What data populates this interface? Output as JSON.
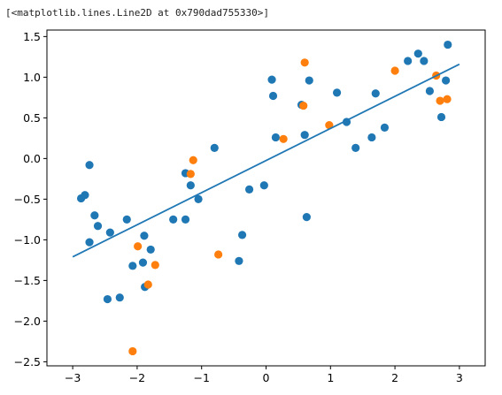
{
  "cell_output": "[<matplotlib.lines.Line2D at 0x790dad755330>]",
  "chart_data": {
    "type": "scatter",
    "title": "",
    "xlabel": "",
    "ylabel": "",
    "xlim": [
      -3.4,
      3.4
    ],
    "ylim": [
      -2.55,
      1.58
    ],
    "xticks": [
      -3,
      -2,
      -1,
      0,
      1,
      2,
      3
    ],
    "xtick_labels": [
      "−3",
      "−2",
      "−1",
      "0",
      "1",
      "2",
      "3"
    ],
    "yticks": [
      -2.5,
      -2.0,
      -1.5,
      -1.0,
      -0.5,
      0.0,
      0.5,
      1.0,
      1.5
    ],
    "ytick_labels": [
      "−2.5",
      "−2.0",
      "−1.5",
      "−1.0",
      "−0.5",
      "0.0",
      "0.5",
      "1.0",
      "1.5"
    ],
    "grid": false,
    "legend": "none",
    "series": [
      {
        "kind": "scatter",
        "color": "#1f77b4",
        "points": [
          [
            -2.87,
            -0.49
          ],
          [
            -2.81,
            -0.45
          ],
          [
            -2.74,
            -0.08
          ],
          [
            -2.74,
            -1.03
          ],
          [
            -2.66,
            -0.7
          ],
          [
            -2.61,
            -0.83
          ],
          [
            -2.46,
            -1.73
          ],
          [
            -2.42,
            -0.91
          ],
          [
            -2.27,
            -1.71
          ],
          [
            -2.16,
            -0.75
          ],
          [
            -2.07,
            -1.32
          ],
          [
            -1.91,
            -1.28
          ],
          [
            -1.89,
            -0.95
          ],
          [
            -1.88,
            -1.58
          ],
          [
            -1.79,
            -1.12
          ],
          [
            -1.44,
            -0.75
          ],
          [
            -1.25,
            -0.75
          ],
          [
            -1.25,
            -0.18
          ],
          [
            -1.17,
            -0.33
          ],
          [
            -1.05,
            -0.5
          ],
          [
            -0.8,
            0.13
          ],
          [
            -0.42,
            -1.26
          ],
          [
            -0.37,
            -0.94
          ],
          [
            -0.26,
            -0.38
          ],
          [
            -0.03,
            -0.33
          ],
          [
            0.09,
            0.97
          ],
          [
            0.11,
            0.77
          ],
          [
            0.15,
            0.26
          ],
          [
            0.55,
            0.66
          ],
          [
            0.6,
            0.29
          ],
          [
            0.63,
            -0.72
          ],
          [
            0.67,
            0.96
          ],
          [
            1.1,
            0.81
          ],
          [
            1.25,
            0.45
          ],
          [
            1.39,
            0.13
          ],
          [
            1.64,
            0.26
          ],
          [
            1.7,
            0.8
          ],
          [
            1.84,
            0.38
          ],
          [
            2.2,
            1.2
          ],
          [
            2.36,
            1.29
          ],
          [
            2.45,
            1.2
          ],
          [
            2.54,
            0.83
          ],
          [
            2.72,
            0.51
          ],
          [
            2.79,
            0.96
          ],
          [
            2.82,
            1.4
          ]
        ]
      },
      {
        "kind": "scatter",
        "color": "#ff7f0e",
        "points": [
          [
            -2.07,
            -2.37
          ],
          [
            -1.99,
            -1.08
          ],
          [
            -1.83,
            -1.55
          ],
          [
            -1.72,
            -1.31
          ],
          [
            -1.17,
            -0.19
          ],
          [
            -1.13,
            -0.02
          ],
          [
            -0.74,
            -1.18
          ],
          [
            0.27,
            0.24
          ],
          [
            0.58,
            0.65
          ],
          [
            0.6,
            1.18
          ],
          [
            0.98,
            0.41
          ],
          [
            2.0,
            1.08
          ],
          [
            2.64,
            1.02
          ],
          [
            2.7,
            0.71
          ],
          [
            2.81,
            0.73
          ]
        ]
      },
      {
        "kind": "line",
        "color": "#1f77b4",
        "x": [
          -3.0,
          3.0
        ],
        "y": [
          -1.21,
          1.16
        ]
      }
    ]
  }
}
